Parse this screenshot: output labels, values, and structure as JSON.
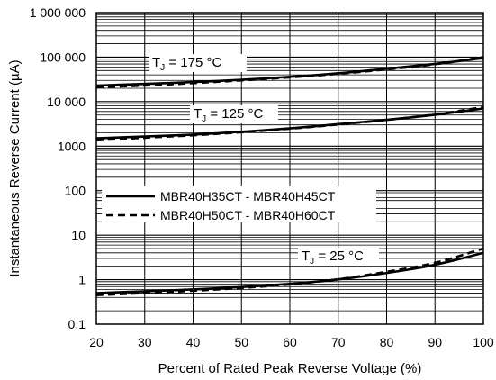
{
  "chart_data": {
    "type": "line",
    "xlabel": "Percent of Rated Peak Reverse Voltage (%)",
    "ylabel": "Instantaneous Reverse Current (µA)",
    "x_ticks": [
      "20",
      "30",
      "40",
      "50",
      "60",
      "70",
      "80",
      "90",
      "100"
    ],
    "y_ticks": [
      "0.1",
      "1",
      "10",
      "100",
      "1000",
      "10 000",
      "100 000",
      "1 000 000"
    ],
    "xlim": [
      20,
      100
    ],
    "ylim": [
      0.1,
      1000000
    ],
    "y_scale": "log",
    "grid": true,
    "legend": {
      "placement": "middle-left",
      "entries": [
        {
          "label": "MBR40H35CT - MBR40H45CT",
          "style": "solid"
        },
        {
          "label": "MBR40H50CT - MBR40H60CT",
          "style": "dashed"
        }
      ]
    },
    "annotations": [
      {
        "id": "tj175",
        "prefix": "T",
        "sub": "J",
        "text": " = 175 °C"
      },
      {
        "id": "tj125",
        "prefix": "T",
        "sub": "J",
        "text": " = 125 °C"
      },
      {
        "id": "tj25",
        "prefix": "T",
        "sub": "J",
        "text": " = 25 °C"
      }
    ],
    "series": [
      {
        "group": "175",
        "style": "solid",
        "x": [
          20,
          30,
          40,
          50,
          60,
          70,
          80,
          90,
          100
        ],
        "y": [
          23000,
          25000,
          27500,
          31000,
          36000,
          43000,
          55000,
          70000,
          95000
        ]
      },
      {
        "group": "175",
        "style": "dashed",
        "x": [
          20,
          30,
          40,
          50,
          60,
          70,
          80,
          90,
          100
        ],
        "y": [
          21000,
          23000,
          26000,
          30000,
          35000,
          42000,
          53000,
          68000,
          100000
        ]
      },
      {
        "group": "125",
        "style": "solid",
        "x": [
          20,
          30,
          40,
          50,
          60,
          70,
          80,
          90,
          100
        ],
        "y": [
          1500,
          1650,
          1800,
          2100,
          2500,
          3100,
          3900,
          5000,
          7000
        ]
      },
      {
        "group": "125",
        "style": "dashed",
        "x": [
          20,
          30,
          40,
          50,
          60,
          70,
          80,
          90,
          100
        ],
        "y": [
          1350,
          1550,
          1750,
          2050,
          2450,
          3050,
          3850,
          5100,
          7500
        ]
      },
      {
        "group": "25",
        "style": "solid",
        "x": [
          20,
          30,
          40,
          50,
          60,
          70,
          80,
          90,
          100
        ],
        "y": [
          0.5,
          0.55,
          0.6,
          0.68,
          0.8,
          1.0,
          1.4,
          2.1,
          4.0
        ]
      },
      {
        "group": "25",
        "style": "dashed",
        "x": [
          20,
          30,
          40,
          50,
          60,
          70,
          80,
          90,
          100
        ],
        "y": [
          0.45,
          0.5,
          0.56,
          0.65,
          0.78,
          1.0,
          1.5,
          2.3,
          5.0
        ]
      }
    ]
  }
}
